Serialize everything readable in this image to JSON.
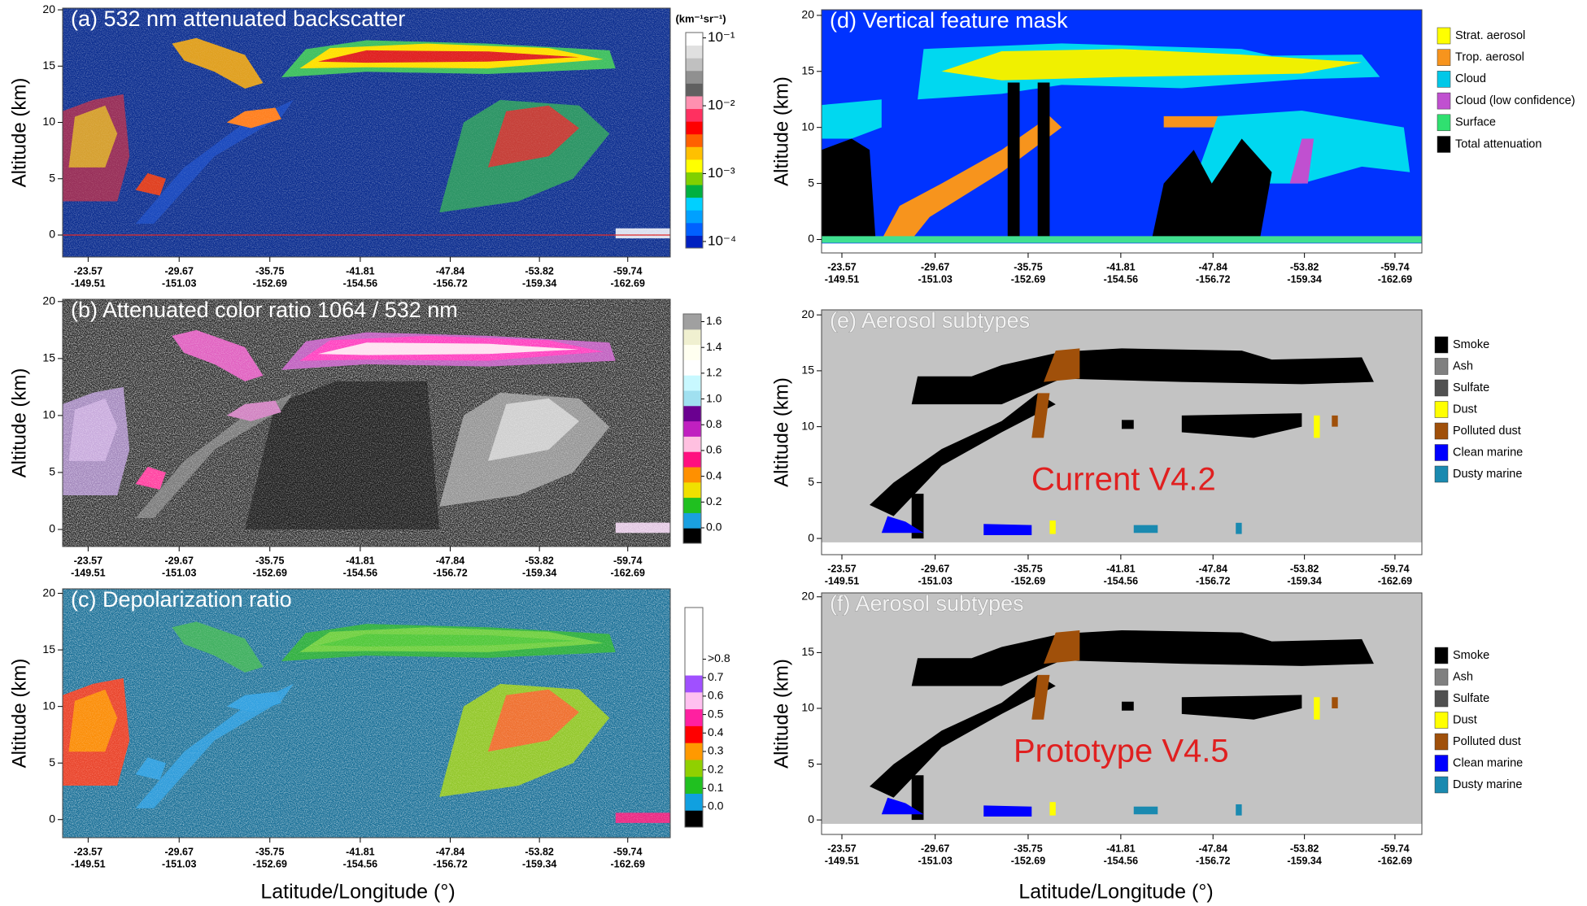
{
  "chart_data": [
    {
      "type": "curtain",
      "title": "(a) 532 nm attenuated backscatter",
      "ylabel": "Altitude (km)",
      "ylim": [
        -1.95,
        20.15
      ],
      "yticks": [
        0,
        5,
        10,
        15,
        20
      ],
      "xlim": [
        -21.86,
        -62.59
      ],
      "xticks": [
        {
          "lat": -23.57,
          "lon": -149.51
        },
        {
          "lat": -29.67,
          "lon": -151.03
        },
        {
          "lat": -35.75,
          "lon": -152.69
        },
        {
          "lat": -41.81,
          "lon": -154.56
        },
        {
          "lat": -47.84,
          "lon": -156.72
        },
        {
          "lat": -53.82,
          "lon": -159.34
        },
        {
          "lat": -59.74,
          "lon": -162.69
        }
      ],
      "colorbar": {
        "label": "(km⁻¹sr⁻¹)",
        "scale": "log",
        "lim": [
          8e-05,
          0.12
        ],
        "ticks": [
          {
            "value": 0.1,
            "label": "10⁻¹"
          },
          {
            "value": 0.01,
            "label": "10⁻²"
          },
          {
            "value": 0.001,
            "label": "10⁻³"
          },
          {
            "value": 0.0001,
            "label": "10⁻⁴"
          }
        ],
        "colors": [
          "#0020c0",
          "#0060ff",
          "#00a0ff",
          "#00d0ff",
          "#00b040",
          "#80d000",
          "#ffff00",
          "#ffc000",
          "#ff6000",
          "#ff0000",
          "#ff3060",
          "#ff90b0",
          "#606060",
          "#909090",
          "#c0c0c0",
          "#e0e0e0",
          "#ffffff"
        ]
      }
    },
    {
      "type": "curtain",
      "title": "(b) Attenuated color ratio 1064 / 532 nm",
      "ylabel": "Altitude (km)",
      "ylim": [
        -1.5,
        20.2
      ],
      "yticks": [
        0,
        5,
        10,
        15,
        20
      ],
      "xlim": [
        -21.86,
        -62.59
      ],
      "xticks": [
        {
          "lat": -23.57,
          "lon": -149.51
        },
        {
          "lat": -29.67,
          "lon": -151.03
        },
        {
          "lat": -35.75,
          "lon": -152.69
        },
        {
          "lat": -41.81,
          "lon": -154.56
        },
        {
          "lat": -47.84,
          "lon": -156.72
        },
        {
          "lat": -53.82,
          "lon": -159.34
        },
        {
          "lat": -59.74,
          "lon": -162.69
        }
      ],
      "colorbar": {
        "scale": "linear",
        "lim": [
          -0.12,
          1.66
        ],
        "ticks": [
          {
            "value": 1.6,
            "label": "1.6"
          },
          {
            "value": 1.4,
            "label": "1.4"
          },
          {
            "value": 1.2,
            "label": "1.2"
          },
          {
            "value": 1.0,
            "label": "1.0"
          },
          {
            "value": 0.8,
            "label": "0.8"
          },
          {
            "value": 0.6,
            "label": "0.6"
          },
          {
            "value": 0.4,
            "label": "0.4"
          },
          {
            "value": 0.2,
            "label": "0.2"
          },
          {
            "value": 0.0,
            "label": "0.0"
          }
        ],
        "colors": [
          "#000000",
          "#1aa0e0",
          "#20c020",
          "#f0e000",
          "#ff9000",
          "#ff1080",
          "#ffc0e0",
          "#c020c0",
          "#6a0090",
          "#a0e0f0",
          "#c8f8ff",
          "#ffffff",
          "#fffff0",
          "#f0f0d0",
          "#a0a0a0"
        ]
      }
    },
    {
      "type": "curtain",
      "title": "(c) Depolarization ratio",
      "ylabel": "Altitude (km)",
      "ylim": [
        -1.6,
        20.4
      ],
      "yticks": [
        0,
        5,
        10,
        15,
        20
      ],
      "xlim": [
        -21.86,
        -62.59
      ],
      "xticks": [
        {
          "lat": -23.57,
          "lon": -149.51
        },
        {
          "lat": -29.67,
          "lon": -151.03
        },
        {
          "lat": -35.75,
          "lon": -152.69
        },
        {
          "lat": -41.81,
          "lon": -154.56
        },
        {
          "lat": -47.84,
          "lon": -156.72
        },
        {
          "lat": -53.82,
          "lon": -159.34
        },
        {
          "lat": -59.74,
          "lon": -162.69
        }
      ],
      "xlabel": "Latitude/Longitude (°)",
      "colorbar": {
        "scale": "linear",
        "lim": [
          -0.11,
          1.08
        ],
        "ticks": [
          {
            "value": 0.8,
            "label": ">0.8"
          },
          {
            "value": 0.7,
            "label": "0.7"
          },
          {
            "value": 0.6,
            "label": "0.6"
          },
          {
            "value": 0.5,
            "label": "0.5"
          },
          {
            "value": 0.4,
            "label": "0.4"
          },
          {
            "value": 0.3,
            "label": "0.3"
          },
          {
            "value": 0.2,
            "label": "0.2"
          },
          {
            "value": 0.1,
            "label": "0.1"
          },
          {
            "value": 0.0,
            "label": "0.0"
          }
        ],
        "colors": [
          "#000000",
          "#10a0e0",
          "#20c020",
          "#90d000",
          "#ff9900",
          "#ff0000",
          "#ff20a0",
          "#ffc0f0",
          "#a050ff",
          "#ffffff",
          "#ffffff",
          "#ffffff",
          "#ffffff"
        ]
      }
    },
    {
      "type": "curtain",
      "title": "(d) Vertical feature mask",
      "ylabel": "Altitude (km)",
      "ylim": [
        -1.2,
        20.5
      ],
      "yticks": [
        0,
        5,
        10,
        15,
        20
      ],
      "xlim": [
        -22.24,
        -61.5
      ],
      "xticks": [
        {
          "lat": -23.57,
          "lon": -149.51
        },
        {
          "lat": -29.67,
          "lon": -151.03
        },
        {
          "lat": -35.75,
          "lon": -152.69
        },
        {
          "lat": -41.81,
          "lon": -154.56
        },
        {
          "lat": -47.84,
          "lon": -156.72
        },
        {
          "lat": -53.82,
          "lon": -159.34
        },
        {
          "lat": -59.74,
          "lon": -162.69
        }
      ],
      "legend": [
        {
          "name": "Strat. aerosol",
          "color": "#ffff00"
        },
        {
          "name": "Trop. aerosol",
          "color": "#f7941d"
        },
        {
          "name": "Cloud",
          "color": "#00c8e8"
        },
        {
          "name": "Cloud (low confidence)",
          "color": "#c050d0"
        },
        {
          "name": "Surface",
          "color": "#30e070"
        },
        {
          "name": "Total attenuation",
          "color": "#000000"
        }
      ]
    },
    {
      "type": "curtain",
      "title": "(e) Aerosol subtypes",
      "ylabel": "Altitude (km)",
      "ylim": [
        -1.45,
        20.45
      ],
      "yticks": [
        0,
        5,
        10,
        15,
        20
      ],
      "xlim": [
        -22.24,
        -61.5
      ],
      "xticks": [
        {
          "lat": -23.57,
          "lon": -149.51
        },
        {
          "lat": -29.67,
          "lon": -151.03
        },
        {
          "lat": -35.75,
          "lon": -152.69
        },
        {
          "lat": -41.81,
          "lon": -154.56
        },
        {
          "lat": -47.84,
          "lon": -156.72
        },
        {
          "lat": -53.82,
          "lon": -159.34
        },
        {
          "lat": -59.74,
          "lon": -162.69
        }
      ],
      "annotation": "Current V4.2",
      "annotation_color": "#e02020",
      "legend": [
        {
          "name": "Smoke",
          "color": "#000000"
        },
        {
          "name": "Ash",
          "color": "#808080"
        },
        {
          "name": "Sulfate",
          "color": "#505050"
        },
        {
          "name": "Dust",
          "color": "#ffff00"
        },
        {
          "name": "Polluted dust",
          "color": "#a0500a"
        },
        {
          "name": "Clean marine",
          "color": "#0000ff"
        },
        {
          "name": "Dusty marine",
          "color": "#1a8ab0"
        }
      ]
    },
    {
      "type": "curtain",
      "title": "(f) Aerosol subtypes",
      "ylabel": "Altitude (km)",
      "ylim": [
        -1.3,
        20.35
      ],
      "yticks": [
        0,
        5,
        10,
        15,
        20
      ],
      "xlim": [
        -22.24,
        -61.5
      ],
      "xticks": [
        {
          "lat": -23.57,
          "lon": -149.51
        },
        {
          "lat": -29.67,
          "lon": -151.03
        },
        {
          "lat": -35.75,
          "lon": -152.69
        },
        {
          "lat": -41.81,
          "lon": -154.56
        },
        {
          "lat": -47.84,
          "lon": -156.72
        },
        {
          "lat": -53.82,
          "lon": -159.34
        },
        {
          "lat": -59.74,
          "lon": -162.69
        }
      ],
      "xlabel": "Latitude/Longitude (°)",
      "annotation": "Prototype V4.5",
      "annotation_color": "#e02020",
      "legend": [
        {
          "name": "Smoke",
          "color": "#000000"
        },
        {
          "name": "Ash",
          "color": "#808080"
        },
        {
          "name": "Sulfate",
          "color": "#505050"
        },
        {
          "name": "Dust",
          "color": "#ffff00"
        },
        {
          "name": "Polluted dust",
          "color": "#a0500a"
        },
        {
          "name": "Clean marine",
          "color": "#0000ff"
        },
        {
          "name": "Dusty marine",
          "color": "#1a8ab0"
        }
      ]
    }
  ]
}
